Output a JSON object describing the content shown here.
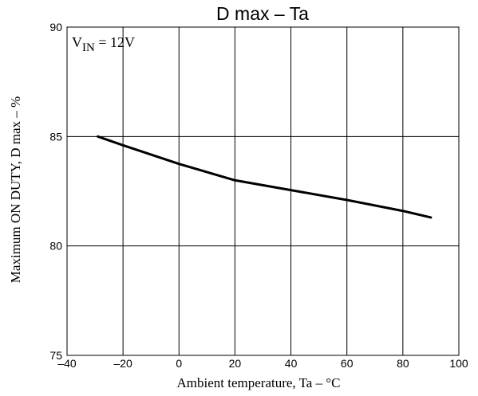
{
  "chart_data": {
    "type": "line",
    "title": "D max  –  Ta",
    "xlabel": "Ambient temperature, Ta  –  °C",
    "ylabel": "Maximum ON DUTY, D max  –  %",
    "annotation": "V_IN = 12V",
    "annotation_parts": {
      "base": "V",
      "sub": "IN",
      "rest": " = 12V"
    },
    "xlim": [
      -40,
      100
    ],
    "ylim": [
      75,
      90
    ],
    "x_ticks": [
      -40,
      -20,
      0,
      20,
      40,
      60,
      80,
      100
    ],
    "y_ticks": [
      75,
      80,
      85,
      90
    ],
    "x_tick_labels": [
      "–40",
      "–20",
      "0",
      "20",
      "40",
      "60",
      "80",
      "100"
    ],
    "y_tick_labels": [
      "75",
      "80",
      "85",
      "90"
    ],
    "grid": true,
    "series": [
      {
        "x": [
          -29,
          -20,
          0,
          20,
          40,
          60,
          80,
          90
        ],
        "y": [
          85.0,
          84.6,
          83.75,
          83.0,
          82.55,
          82.1,
          81.6,
          81.3
        ]
      }
    ]
  }
}
